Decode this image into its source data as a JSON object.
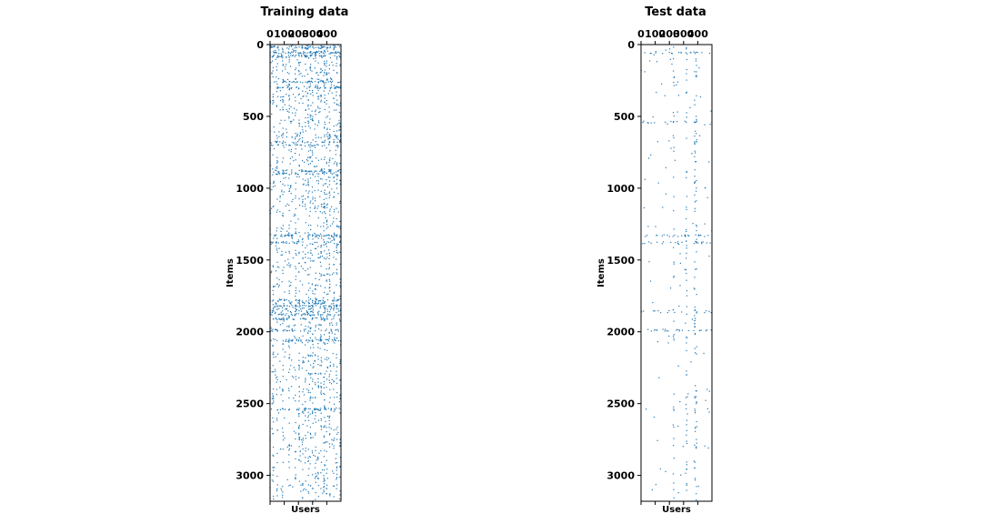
{
  "chart_data": [
    {
      "type": "scatter",
      "title": "Training data",
      "xlabel": "Users",
      "ylabel": "Items",
      "xlim": [
        0,
        500
      ],
      "ylim": [
        3180,
        0
      ],
      "x_ticks": [
        0,
        100,
        200,
        300,
        400
      ],
      "y_ticks": [
        0,
        500,
        1000,
        1500,
        2000,
        2500,
        3000
      ],
      "grid": false,
      "marker_color": "#1f77b4",
      "dense_user_columns": [
        0,
        22,
        50,
        90,
        135,
        180,
        205,
        230,
        250,
        270,
        285,
        300,
        320,
        340,
        360,
        380,
        385,
        400,
        420,
        450,
        470,
        495
      ],
      "dense_item_rows": [
        20,
        55,
        80,
        260,
        300,
        640,
        680,
        700,
        880,
        900,
        1330,
        1380,
        1780,
        1800,
        1820,
        1840,
        1860,
        1880,
        1910,
        1990,
        2060,
        2540
      ]
    },
    {
      "type": "scatter",
      "title": "Test data",
      "xlabel": "Users",
      "ylabel": "Items",
      "xlim": [
        0,
        500
      ],
      "ylim": [
        3180,
        0
      ],
      "x_ticks": [
        0,
        100,
        200,
        300,
        400
      ],
      "y_ticks": [
        0,
        500,
        1000,
        1500,
        2000,
        2500,
        3000
      ],
      "grid": false,
      "marker_color": "#1f77b4",
      "dense_user_columns": [
        230,
        320,
        380,
        390
      ],
      "dense_item_rows": [
        60,
        540,
        1330,
        1380,
        1860,
        1990
      ]
    }
  ]
}
